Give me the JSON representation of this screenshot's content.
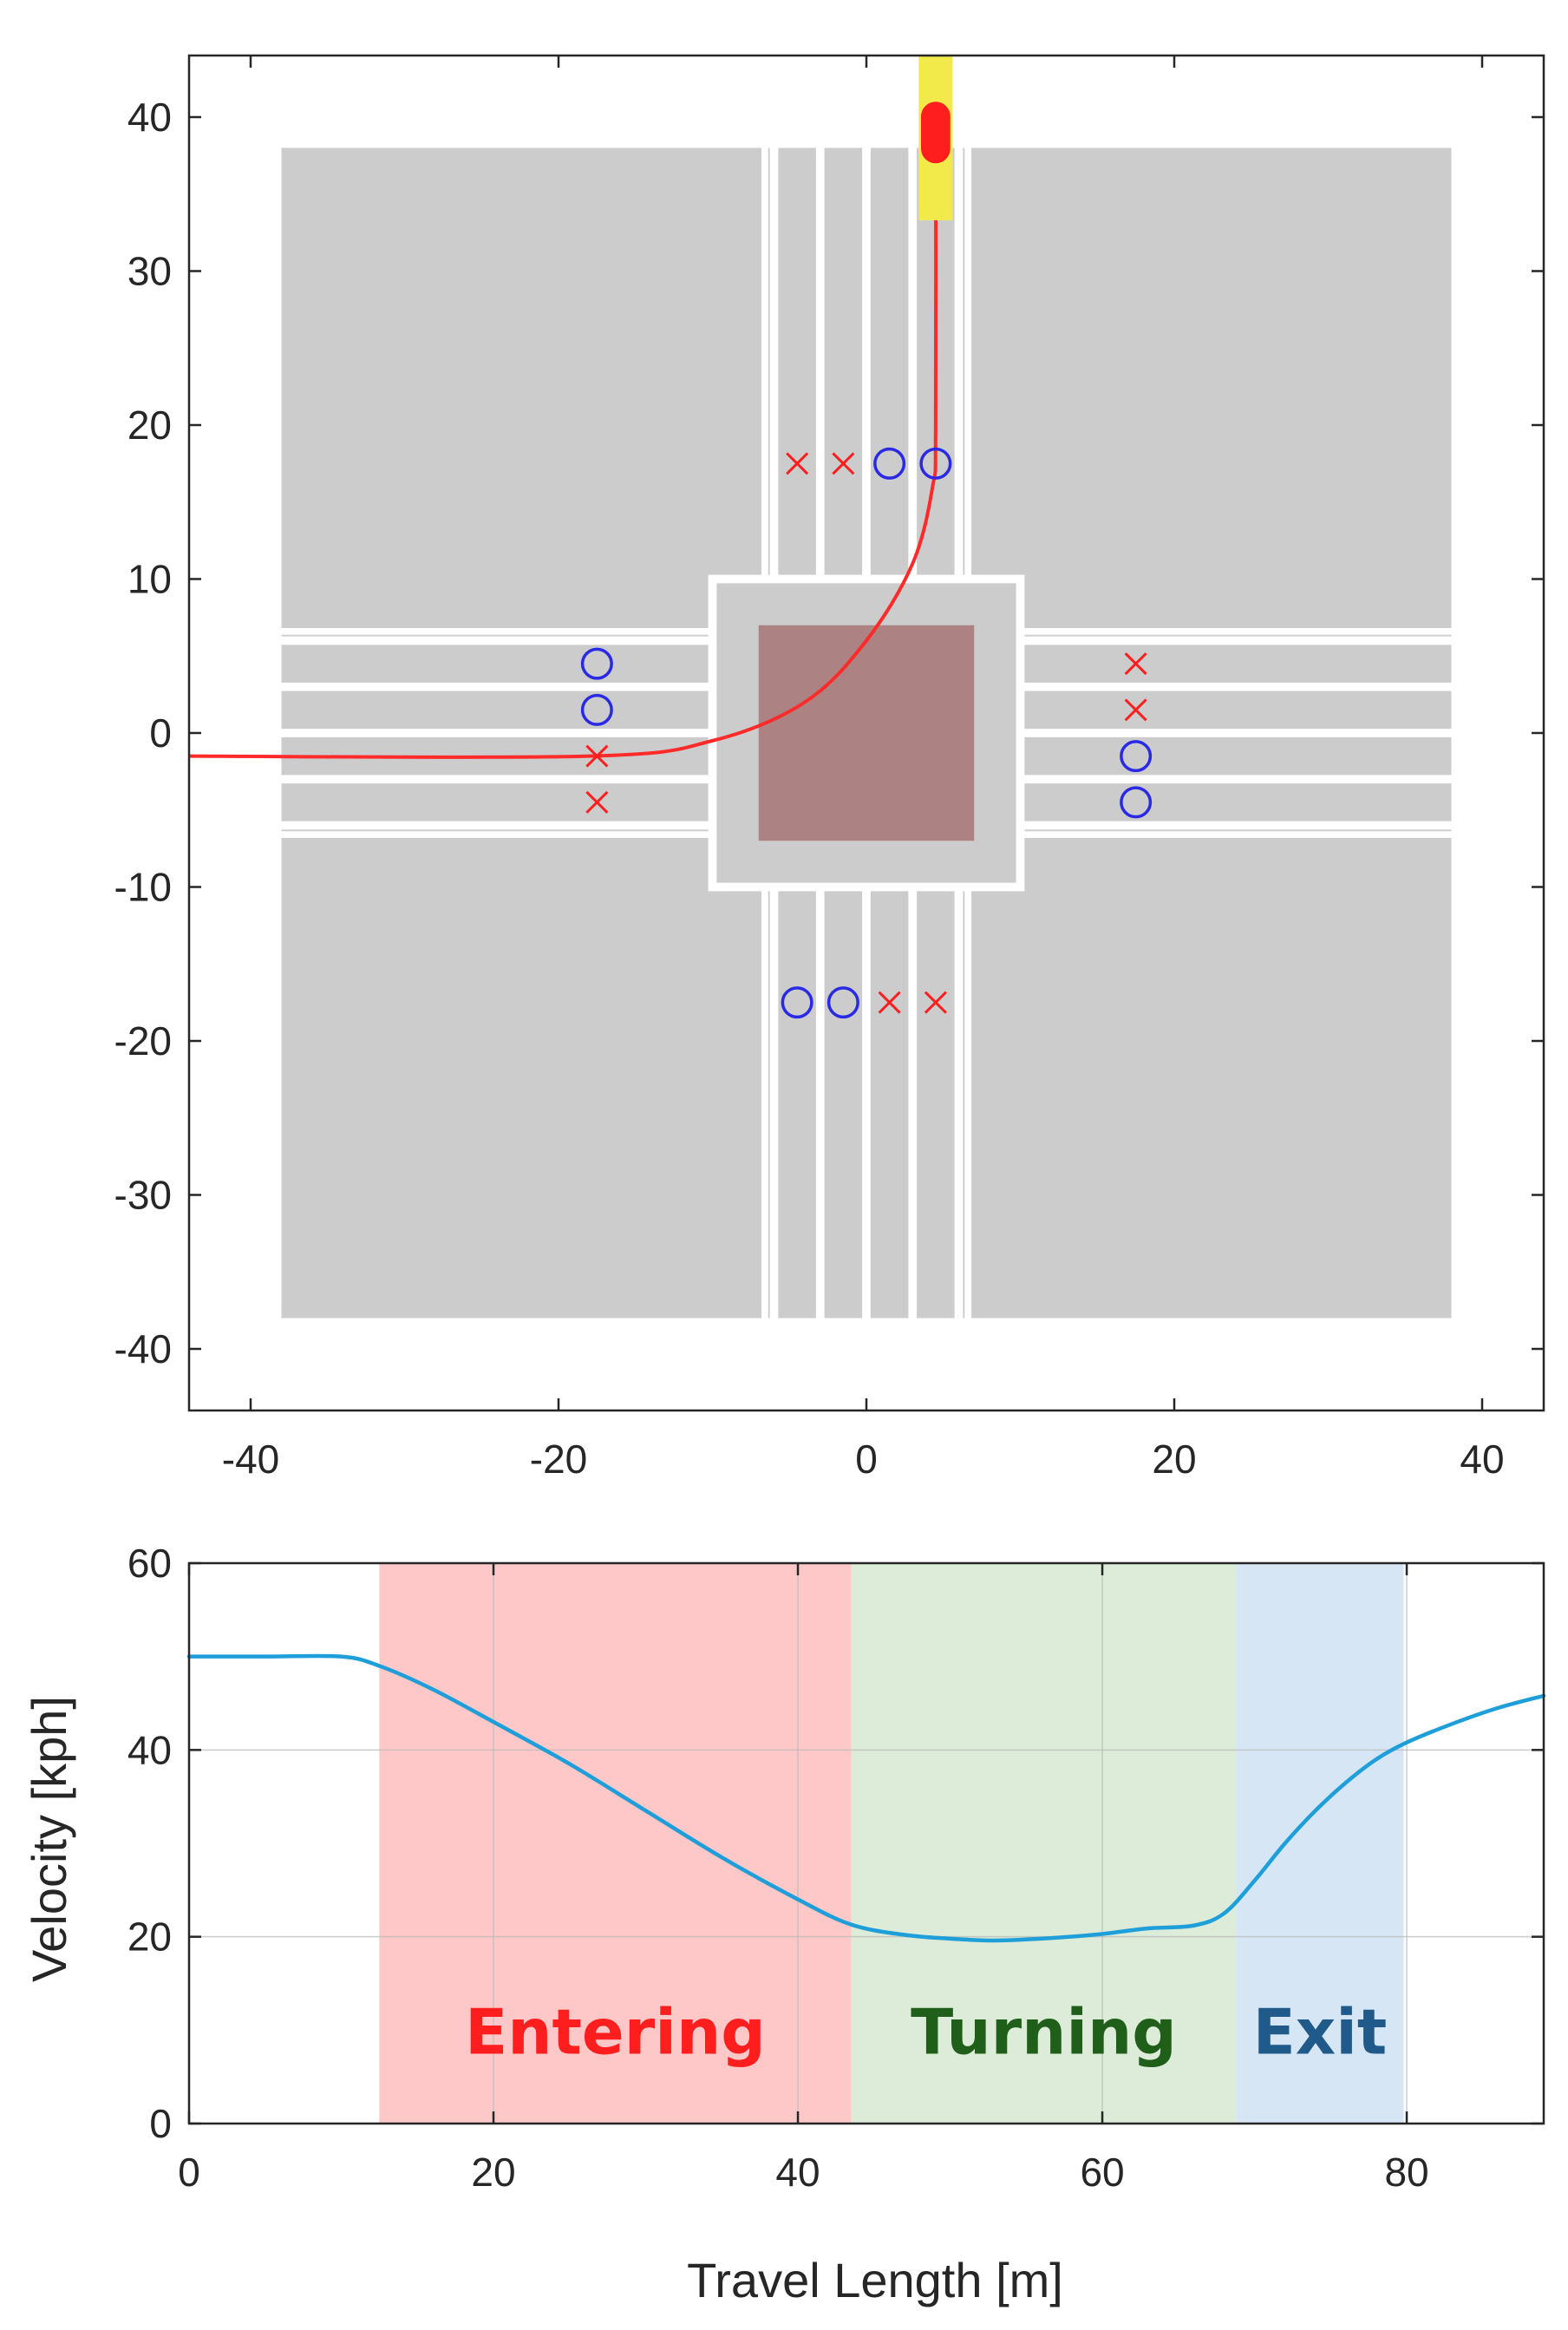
{
  "colors": {
    "road": "#cccccc",
    "marking": "#ffffff",
    "center": "#ad8282",
    "path": "#ff2a2a",
    "waypoint_cross": "#ff1e1e",
    "waypoint_circle": "#2a2ae6",
    "vehicle": "#ff1e1e",
    "vehicle_highlight": "#f2ea4a",
    "velocity_line": "#1f9fd9",
    "entering": "#ffc8c8",
    "turning": "#dcecd8",
    "exit": "#d6e6f4",
    "entering_text": "#ff1e1e",
    "turning_text": "#1f5f1a",
    "exit_text": "#1f5a8a"
  },
  "chart_data": [
    {
      "type": "scatter",
      "title": "",
      "xlabel": "",
      "ylabel": "",
      "xlim": [
        -44,
        44
      ],
      "ylim": [
        -44,
        44
      ],
      "xticks": [
        "-40",
        "-20",
        "0",
        "20",
        "40"
      ],
      "xtick_values": [
        -40,
        -20,
        0,
        20,
        40
      ],
      "yticks": [
        "40",
        "30",
        "20",
        "10",
        "0",
        "-10",
        "-20",
        "-30",
        "-40"
      ],
      "ytick_values": [
        40,
        30,
        20,
        10,
        0,
        -10,
        -20,
        -30,
        -40
      ],
      "grid": false,
      "roads": {
        "outer_extent": 38,
        "lanes_center": [
          -4.5,
          -1.5,
          1.5,
          4.5
        ],
        "lane_width": 3,
        "roundabout_half": 10,
        "center_half": 7
      },
      "path": [
        [
          -44,
          -1.5
        ],
        [
          -18,
          -1.5
        ],
        [
          -10,
          -0.5
        ],
        [
          -4,
          2
        ],
        [
          0,
          6
        ],
        [
          3,
          11
        ],
        [
          4.3,
          16
        ],
        [
          4.5,
          20
        ],
        [
          4.5,
          41
        ]
      ],
      "crosses": [
        [
          -4.5,
          17.5
        ],
        [
          -1.5,
          17.5
        ],
        [
          -17.5,
          -1.5
        ],
        [
          -17.5,
          -4.5
        ],
        [
          17.5,
          4.5
        ],
        [
          17.5,
          1.5
        ],
        [
          1.5,
          -17.5
        ],
        [
          4.5,
          -17.5
        ]
      ],
      "circles": [
        [
          1.5,
          17.5
        ],
        [
          4.5,
          17.5
        ],
        [
          -17.5,
          4.5
        ],
        [
          -17.5,
          1.5
        ],
        [
          17.5,
          -1.5
        ],
        [
          17.5,
          -4.5
        ],
        [
          -4.5,
          -17.5
        ],
        [
          -1.5,
          -17.5
        ]
      ],
      "vehicle": {
        "x": 4.5,
        "y_front": 41,
        "y_back": 37
      }
    },
    {
      "type": "line",
      "title": "",
      "xlabel": "Travel Length [m]",
      "ylabel": "Velocity [kph]",
      "xlim": [
        0,
        89
      ],
      "ylim": [
        0,
        60
      ],
      "xticks": [
        "0",
        "20",
        "40",
        "60",
        "80"
      ],
      "xtick_values": [
        0,
        20,
        40,
        60,
        80
      ],
      "yticks": [
        "0",
        "20",
        "40",
        "60"
      ],
      "ytick_values": [
        0,
        20,
        40,
        60
      ],
      "grid": true,
      "x": [
        0,
        5,
        10,
        12.5,
        16,
        20,
        25,
        30,
        35,
        40,
        43.5,
        47,
        50,
        53,
        57,
        60,
        63,
        66,
        68,
        70,
        72,
        74,
        76,
        78,
        80,
        83,
        86,
        89
      ],
      "values": [
        50,
        50,
        50,
        49,
        46.5,
        43,
        38.5,
        33.5,
        28.5,
        24,
        21.3,
        20.2,
        19.8,
        19.6,
        19.9,
        20.3,
        20.9,
        21.2,
        22.5,
        26,
        30,
        33.5,
        36.5,
        39,
        40.8,
        42.8,
        44.5,
        45.8
      ],
      "phases": [
        {
          "name": "Entering",
          "from": 12.5,
          "to": 43.5
        },
        {
          "name": "Turning",
          "from": 43.5,
          "to": 68.8
        },
        {
          "name": "Exit",
          "from": 68.8,
          "to": 79.8
        }
      ]
    }
  ]
}
